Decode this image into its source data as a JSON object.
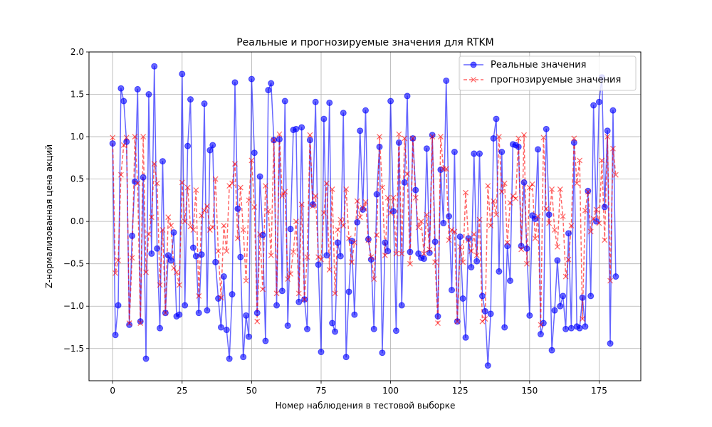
{
  "chart_data": {
    "type": "line",
    "title": "Реальные и прогнозируемые значения для RTKM",
    "xlabel": "Номер наблюдения в тестовой выборке",
    "ylabel": "Z-нормализованная цена акций",
    "xlim": [
      -8.5,
      190
    ],
    "ylim": [
      -1.88,
      2.0
    ],
    "xticks": [
      0,
      25,
      50,
      75,
      100,
      125,
      150,
      175
    ],
    "yticks": [
      -1.5,
      -1.0,
      -0.5,
      0.0,
      0.5,
      1.0,
      1.5,
      2.0
    ],
    "ytick_labels": [
      "−1.5",
      "−1.0",
      "−0.5",
      "0.0",
      "0.5",
      "1.0",
      "1.5",
      "2.0"
    ],
    "grid": true,
    "legend_position": "top-right",
    "series": [
      {
        "name": "Реальные значения",
        "color": "#0000ff",
        "marker": "circle",
        "linestyle": "solid",
        "values": [
          0.92,
          -1.34,
          -0.99,
          1.57,
          1.42,
          0.94,
          -1.22,
          -0.17,
          0.47,
          1.56,
          -1.18,
          0.52,
          -1.62,
          1.5,
          -0.38,
          1.83,
          -0.32,
          -1.26,
          0.71,
          -1.08,
          -0.4,
          -0.46,
          -0.13,
          -1.12,
          -1.1,
          1.74,
          -0.99,
          0.89,
          1.44,
          -0.31,
          -0.41,
          -1.08,
          -0.39,
          1.39,
          -1.05,
          0.84,
          0.9,
          -0.48,
          -0.91,
          -1.25,
          -0.65,
          -1.28,
          -1.62,
          -0.86,
          1.64,
          0.15,
          -0.42,
          -1.6,
          -1.11,
          -1.36,
          1.68,
          0.81,
          -1.08,
          0.53,
          -0.16,
          -1.41,
          1.55,
          1.63,
          0.96,
          -0.99,
          0.97,
          -0.82,
          1.42,
          -1.23,
          -0.09,
          1.08,
          1.09,
          -0.95,
          1.11,
          -0.92,
          -1.27,
          0.96,
          0.2,
          1.41,
          -0.51,
          -1.54,
          1.21,
          -0.4,
          1.4,
          -1.2,
          -1.3,
          -0.25,
          -0.41,
          1.28,
          -1.6,
          -0.83,
          -0.23,
          -1.1,
          -0.01,
          1.07,
          0.14,
          1.31,
          -0.21,
          -0.45,
          -1.27,
          0.32,
          0.88,
          -1.55,
          -0.25,
          -0.35,
          1.42,
          0.12,
          -1.29,
          0.93,
          -0.99,
          0.46,
          1.48,
          -0.36,
          0.98,
          0.37,
          -0.38,
          -0.43,
          -0.44,
          0.86,
          -0.37,
          1.02,
          -0.24,
          -1.12,
          0.61,
          -0.02,
          1.66,
          0.06,
          -0.81,
          0.82,
          -1.18,
          -0.18,
          -0.91,
          -1.37,
          -0.2,
          -0.54,
          0.8,
          -0.47,
          0.8,
          -0.88,
          -1.06,
          -1.7,
          -1.09,
          0.98,
          1.21,
          -0.59,
          0.82,
          -1.25,
          -0.29,
          -0.7,
          0.91,
          0.9,
          0.88,
          -0.29,
          0.46,
          -0.32,
          -1.11,
          0.07,
          0.03,
          0.85,
          -1.33,
          -1.2,
          1.09,
          0.08,
          -1.52,
          -1.05,
          -0.46,
          -1.0,
          -0.88,
          -1.27,
          -0.14,
          -1.26,
          0.93,
          -1.24,
          -1.26,
          -0.9,
          -1.24,
          0.36,
          -0.88,
          1.37,
          0.0,
          1.41,
          1.7,
          0.17,
          1.07,
          -1.44,
          1.31,
          -0.65
        ]
      },
      {
        "name": "прогнозируемые значения",
        "color": "#ff0000",
        "marker": "x",
        "linestyle": "dashed",
        "values": [
          0.99,
          -0.61,
          -0.46,
          0.55,
          0.9,
          0.99,
          -1.2,
          -0.43,
          1.0,
          0.45,
          -1.2,
          1.0,
          -0.6,
          -0.15,
          0.05,
          0.68,
          0.45,
          -0.75,
          -0.1,
          -1.08,
          0.05,
          -0.05,
          -0.55,
          -0.6,
          -0.75,
          0.46,
          0.0,
          0.4,
          -0.06,
          -0.1,
          0.37,
          -0.88,
          0.07,
          0.13,
          0.18,
          -0.1,
          -0.07,
          0.5,
          -0.35,
          -0.9,
          -0.05,
          -0.35,
          0.42,
          0.45,
          0.68,
          -0.2,
          0.4,
          -0.1,
          -0.7,
          0.25,
          0.72,
          0.17,
          -1.18,
          -0.15,
          -0.8,
          0.42,
          0.12,
          -0.4,
          0.96,
          -0.85,
          1.03,
          0.3,
          0.35,
          -0.68,
          -0.62,
          -0.36,
          0.0,
          -0.85,
          0.2,
          -0.92,
          -0.42,
          1.02,
          0.18,
          0.3,
          -0.42,
          -0.45,
          0.1,
          0.45,
          -0.57,
          0.38,
          -0.85,
          -0.1,
          0.02,
          -0.05,
          0.38,
          -0.2,
          -0.48,
          -0.25,
          0.24,
          0.05,
          0.16,
          0.23,
          -0.22,
          -0.42,
          -0.68,
          -0.16,
          1.0,
          0.4,
          -0.4,
          0.28,
          0.1,
          0.28,
          -0.38,
          1.03,
          -0.38,
          0.98,
          0.56,
          -0.5,
          0.98,
          0.28,
          -0.07,
          0.0,
          -0.38,
          0.08,
          -0.33,
          1.0,
          -0.48,
          -1.2,
          1.0,
          0.62,
          0.62,
          -0.22,
          -0.1,
          -0.12,
          -1.18,
          -0.3,
          -0.48,
          0.34,
          -0.22,
          -0.35,
          -0.15,
          -0.4,
          0.02,
          -1.18,
          -1.15,
          0.42,
          -0.05,
          0.24,
          0.08,
          1.0,
          0.35,
          0.45,
          -0.25,
          0.22,
          0.3,
          0.27,
          0.98,
          -0.33,
          1.02,
          -0.5,
          0.4,
          0.44,
          -0.2,
          0.06,
          -1.22,
          0.99,
          0.15,
          -0.02,
          0.38,
          -0.1,
          -0.3,
          0.38,
          0.06,
          -0.65,
          -0.45,
          -0.05,
          0.98,
          0.45,
          0.72,
          -1.15,
          0.13,
          0.35,
          -0.12,
          0.03,
          0.14,
          -0.02,
          0.72,
          -0.22,
          1.0,
          -0.7,
          0.86,
          0.55
        ]
      }
    ]
  }
}
